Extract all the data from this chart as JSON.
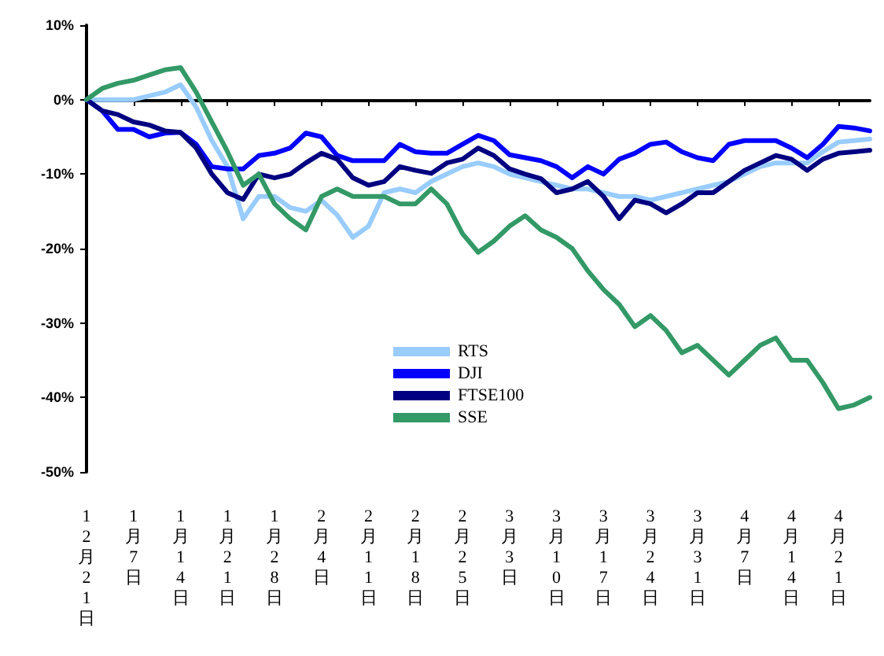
{
  "chart_data": {
    "type": "line",
    "categories": [
      "12月21日",
      null,
      null,
      "1月7日",
      null,
      null,
      "1月14日",
      null,
      null,
      "1月21日",
      null,
      null,
      "1月28日",
      null,
      null,
      "2月4日",
      null,
      null,
      "2月11日",
      null,
      null,
      "2月18日",
      null,
      null,
      "2月25日",
      null,
      null,
      "3月3日",
      null,
      null,
      "3月10日",
      null,
      null,
      "3月17日",
      null,
      null,
      "3月24日",
      null,
      null,
      "3月31日",
      null,
      null,
      "4月7日",
      null,
      null,
      "4月14日",
      null,
      null,
      "4月21日",
      null,
      null
    ],
    "series": [
      {
        "name": "RTS",
        "color": "#99ccff",
        "values": [
          0,
          0,
          0,
          0,
          0.5,
          1,
          2,
          -1,
          -5.5,
          -9,
          -16,
          -13,
          -13,
          -14.5,
          -15,
          -13.5,
          -15.5,
          -18.5,
          -17,
          -12.5,
          -12,
          -12.5,
          -11,
          -10,
          -9,
          -8.5,
          -9,
          -10,
          -10.5,
          -11,
          -11.5,
          -12,
          -12,
          -12.5,
          -13,
          -13,
          -13.5,
          -13,
          -12.5,
          -12,
          -11.5,
          -11,
          -10,
          -9,
          -8.5,
          -8.5,
          -8.5,
          -7,
          -5.7,
          -5.5,
          -5.3
        ]
      },
      {
        "name": "DJI",
        "color": "#0000ff",
        "values": [
          0,
          -1.5,
          -4,
          -4,
          -5,
          -4.5,
          -4.4,
          -6,
          -9,
          -9.3,
          -9.3,
          -7.5,
          -7.2,
          -6.5,
          -4.5,
          -5,
          -7.5,
          -8.2,
          -8.2,
          -8.2,
          -6,
          -7,
          -7.2,
          -7.2,
          -6,
          -4.8,
          -5.5,
          -7.4,
          -7.8,
          -8.2,
          -9,
          -10.5,
          -9,
          -10,
          -8,
          -7.2,
          -6,
          -5.7,
          -7,
          -7.8,
          -8.2,
          -6,
          -5.5,
          -5.5,
          -5.5,
          -6.5,
          -7.8,
          -6,
          -3.6,
          -3.8,
          -4.2
        ]
      },
      {
        "name": "FTSE100",
        "color": "#000080",
        "values": [
          0,
          -1.5,
          -2,
          -3,
          -3.4,
          -4.2,
          -4.4,
          -6.5,
          -10,
          -12.5,
          -13.4,
          -10,
          -10.5,
          -10,
          -8.5,
          -7.2,
          -8,
          -10.5,
          -11.5,
          -11,
          -9,
          -9.5,
          -9.9,
          -8.5,
          -8,
          -6.5,
          -7.5,
          -9.3,
          -10,
          -10.6,
          -12.5,
          -12,
          -11,
          -13,
          -16,
          -13.5,
          -14,
          -15.2,
          -14,
          -12.5,
          -12.5,
          -11,
          -9.5,
          -8.5,
          -7.5,
          -8,
          -9.5,
          -8,
          -7.2,
          -7,
          -6.8
        ]
      },
      {
        "name": "SSE",
        "color": "#339966",
        "values": [
          0,
          1.5,
          2.2,
          2.6,
          3.3,
          4,
          4.3,
          1,
          -3,
          -7,
          -11.5,
          -10,
          -14,
          -16,
          -17.5,
          -13,
          -12,
          -13,
          -13,
          -13,
          -14,
          -14,
          -12,
          -14,
          -18,
          -20.5,
          -19,
          -17,
          -15.6,
          -17.5,
          -18.5,
          -20,
          -23,
          -25.5,
          -27.5,
          -30.5,
          -29,
          -31,
          -34,
          -33,
          -35,
          -37,
          -35,
          -33,
          -32,
          -35,
          -35,
          -38,
          -41.5,
          -41,
          -40
        ]
      }
    ],
    "ylim": [
      -50,
      10
    ],
    "yticks": [
      {
        "value": 10,
        "label": "10%"
      },
      {
        "value": 0,
        "label": "0%"
      },
      {
        "value": -10,
        "label": "-10%"
      },
      {
        "value": -20,
        "label": "-20%"
      },
      {
        "value": -30,
        "label": "-30%"
      },
      {
        "value": -40,
        "label": "-40%"
      },
      {
        "value": -50,
        "label": "-50%"
      }
    ],
    "legend": "bottom",
    "marker": "none",
    "line_style": "solid"
  }
}
